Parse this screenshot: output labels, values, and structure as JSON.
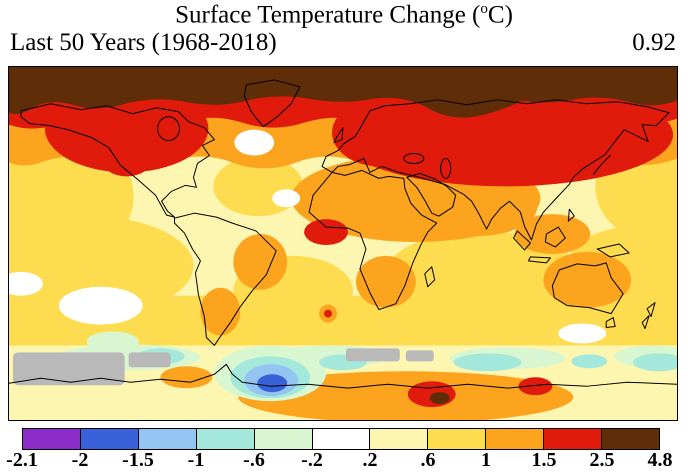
{
  "header": {
    "title_prefix": "Surface Temperature Change (",
    "degree_symbol": "o",
    "title_suffix": "C)",
    "subtitle": "Last 50 Years (1968-2018)",
    "global_mean_label": "0.92"
  },
  "colorbar": {
    "tick_labels": [
      "-2.1",
      "-2",
      "-1.5",
      "-1",
      "-.6",
      "-.2",
      ".2",
      ".6",
      "1",
      "1.5",
      "2.5",
      "4.8"
    ],
    "segment_colors": [
      "#8c2dc8",
      "#3a62d8",
      "#93c4f2",
      "#a4e8dc",
      "#d8f6cf",
      "#ffffff",
      "#fdf6b0",
      "#fedc4f",
      "#fca41e",
      "#e01b0c",
      "#5f2d08"
    ]
  },
  "map": {
    "no_data_color": "#b9b9b9",
    "coastline_color": "#000000"
  },
  "chart_data": {
    "type": "heatmap",
    "title": "Surface Temperature Change (°C)",
    "subtitle": "Last 50 Years (1968-2018)",
    "units": "°C",
    "global_mean_c": 0.92,
    "scale_boundaries_c": [
      -2.1,
      -2,
      -1.5,
      -1,
      -0.6,
      -0.2,
      0.2,
      0.6,
      1,
      1.5,
      2.5,
      4.8
    ],
    "legend_position": "bottom",
    "projection": "equirectangular world map",
    "palette": [
      {
        "range_c": "-2.1 to -2",
        "color": "#8c2dc8"
      },
      {
        "range_c": "-2 to -1.5",
        "color": "#3a62d8"
      },
      {
        "range_c": "-1.5 to -1",
        "color": "#93c4f2"
      },
      {
        "range_c": "-1 to -0.6",
        "color": "#a4e8dc"
      },
      {
        "range_c": "-0.6 to -0.2",
        "color": "#d8f6cf"
      },
      {
        "range_c": "-0.2 to 0.2",
        "color": "#ffffff"
      },
      {
        "range_c": "0.2 to 0.6",
        "color": "#fdf6b0"
      },
      {
        "range_c": "0.6 to 1",
        "color": "#fedc4f"
      },
      {
        "range_c": "1 to 1.5",
        "color": "#fca41e"
      },
      {
        "range_c": "1.5 to 2.5",
        "color": "#e01b0c"
      },
      {
        "range_c": "2.5 to 4.8",
        "color": "#5f2d08"
      }
    ],
    "no_data": {
      "color": "#b9b9b9",
      "meaning": "gray = missing data, mainly Southern Ocean / Antarctic areas"
    },
    "regions_read_from_map": [
      {
        "region": "Arctic / far northern high latitudes",
        "anomaly_c": "2.5 to 4.8"
      },
      {
        "region": "Canada, Greenland, northern Eurasia and Siberia",
        "anomaly_c": "1.5 to 2.5"
      },
      {
        "region": "Western North America, Europe, North Africa, Middle East, central Asia",
        "anomaly_c": "1 to 2.5"
      },
      {
        "region": "Mid-latitude land: Brazil, southern Africa, Australia, Southeast Asia",
        "anomaly_c": "1 to 1.5"
      },
      {
        "region": "Most tropical and mid-latitude oceans",
        "anomaly_c": "0.2 to 1"
      },
      {
        "region": "Ocean patches (North Atlantic south of Greenland, Southeast Pacific)",
        "anomaly_c": "-0.2 to 0.2"
      },
      {
        "region": "Southern Ocean band near 55-65 S",
        "anomaly_c": "-0.6 to -0.2"
      },
      {
        "region": "Ocean patch near Antarctic Peninsula / Weddell Sea",
        "anomaly_c": "-2 to -1"
      },
      {
        "region": "Patches of Antarctica",
        "anomaly_c": "1.5 to 4.8"
      },
      {
        "region": "Gray patches near Antarctica",
        "anomaly_c": "no data"
      }
    ]
  }
}
